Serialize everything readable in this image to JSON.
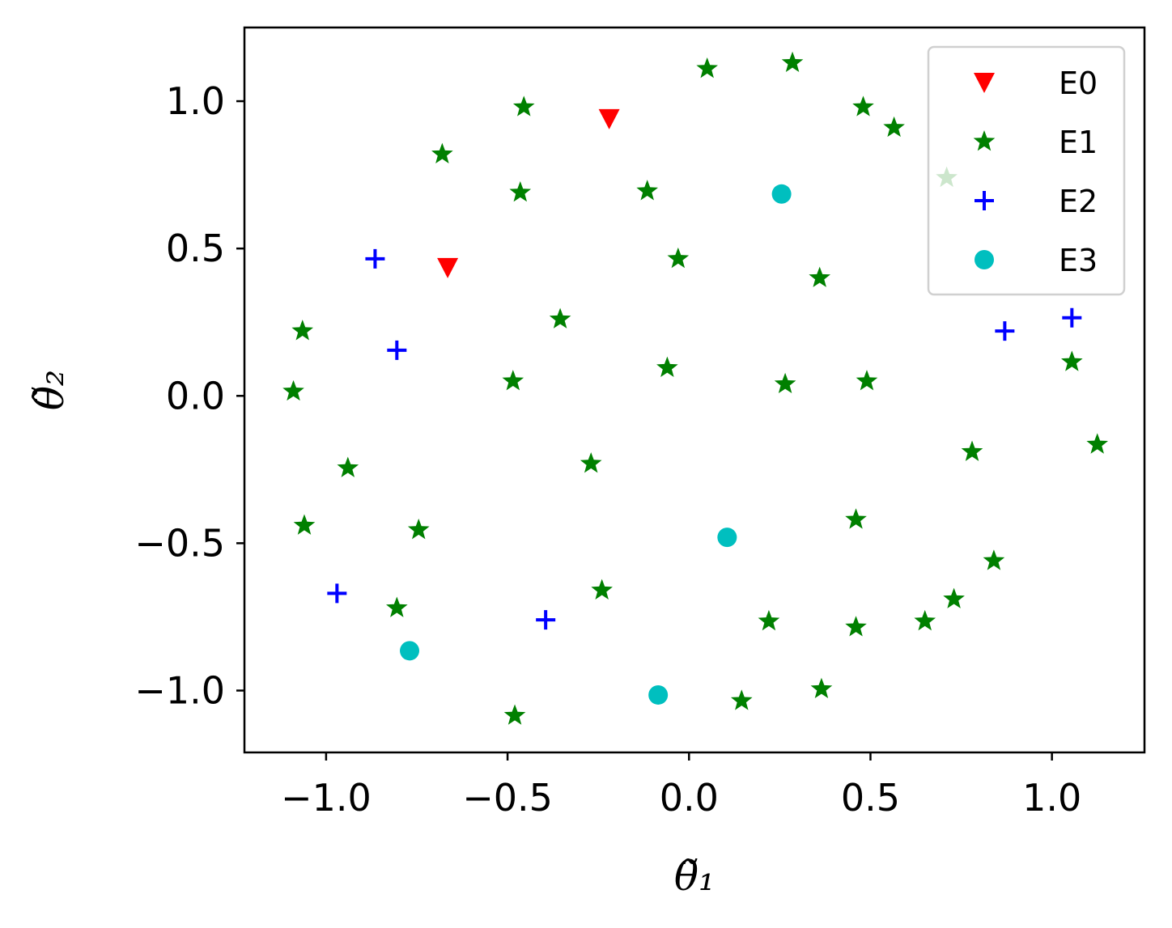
{
  "chart_data": {
    "type": "scatter",
    "xlabel": "θ̃₁",
    "ylabel": "θ̃₂",
    "xlim": [
      -1.225,
      1.255
    ],
    "ylim": [
      -1.21,
      1.25
    ],
    "xticks": [
      -1.0,
      -0.5,
      0.0,
      0.5,
      1.0
    ],
    "xtick_labels": [
      "−1.0",
      "−0.5",
      "0.0",
      "0.5",
      "1.0"
    ],
    "yticks": [
      1.0,
      0.5,
      0.0,
      -0.5,
      -1.0
    ],
    "ytick_labels": [
      "1.0",
      "0.5",
      "0.0",
      "−0.5",
      "−1.0"
    ],
    "grid": false,
    "legend_position": "top-right",
    "series": [
      {
        "name": "E0",
        "marker": "triangle-down-icon",
        "color": "#ff0000",
        "points": [
          [
            -0.22,
            0.94
          ],
          [
            -0.665,
            0.435
          ]
        ]
      },
      {
        "name": "E1",
        "marker": "star-icon",
        "color": "#008000",
        "points": [
          [
            0.05,
            1.11
          ],
          [
            0.285,
            1.13
          ],
          [
            -0.455,
            0.98
          ],
          [
            0.48,
            0.98
          ],
          [
            0.565,
            0.91
          ],
          [
            -0.68,
            0.82
          ],
          [
            0.71,
            0.74
          ],
          [
            -0.115,
            0.695
          ],
          [
            -0.465,
            0.69
          ],
          [
            -0.03,
            0.465
          ],
          [
            0.36,
            0.4
          ],
          [
            -0.355,
            0.26
          ],
          [
            -1.065,
            0.22
          ],
          [
            -0.06,
            0.095
          ],
          [
            -0.485,
            0.05
          ],
          [
            0.265,
            0.04
          ],
          [
            0.49,
            0.05
          ],
          [
            1.055,
            0.115
          ],
          [
            -1.09,
            0.015
          ],
          [
            -0.94,
            -0.245
          ],
          [
            -0.27,
            -0.23
          ],
          [
            0.78,
            -0.19
          ],
          [
            1.125,
            -0.165
          ],
          [
            -1.06,
            -0.44
          ],
          [
            -0.745,
            -0.455
          ],
          [
            0.46,
            -0.42
          ],
          [
            0.84,
            -0.56
          ],
          [
            -0.24,
            -0.66
          ],
          [
            -0.805,
            -0.72
          ],
          [
            0.73,
            -0.69
          ],
          [
            0.22,
            -0.765
          ],
          [
            0.46,
            -0.785
          ],
          [
            0.65,
            -0.765
          ],
          [
            0.365,
            -0.995
          ],
          [
            0.145,
            -1.035
          ],
          [
            -0.48,
            -1.085
          ]
        ]
      },
      {
        "name": "E2",
        "marker": "plus-icon",
        "color": "#0000ff",
        "points": [
          [
            -0.865,
            0.465
          ],
          [
            -0.805,
            0.155
          ],
          [
            1.055,
            0.265
          ],
          [
            0.87,
            0.22
          ],
          [
            -0.97,
            -0.67
          ],
          [
            -0.395,
            -0.76
          ]
        ]
      },
      {
        "name": "E3",
        "marker": "circle-icon",
        "color": "#00bfbf",
        "points": [
          [
            0.255,
            0.685
          ],
          [
            0.105,
            -0.48
          ],
          [
            -0.77,
            -0.865
          ],
          [
            -0.085,
            -1.015
          ]
        ]
      }
    ]
  }
}
